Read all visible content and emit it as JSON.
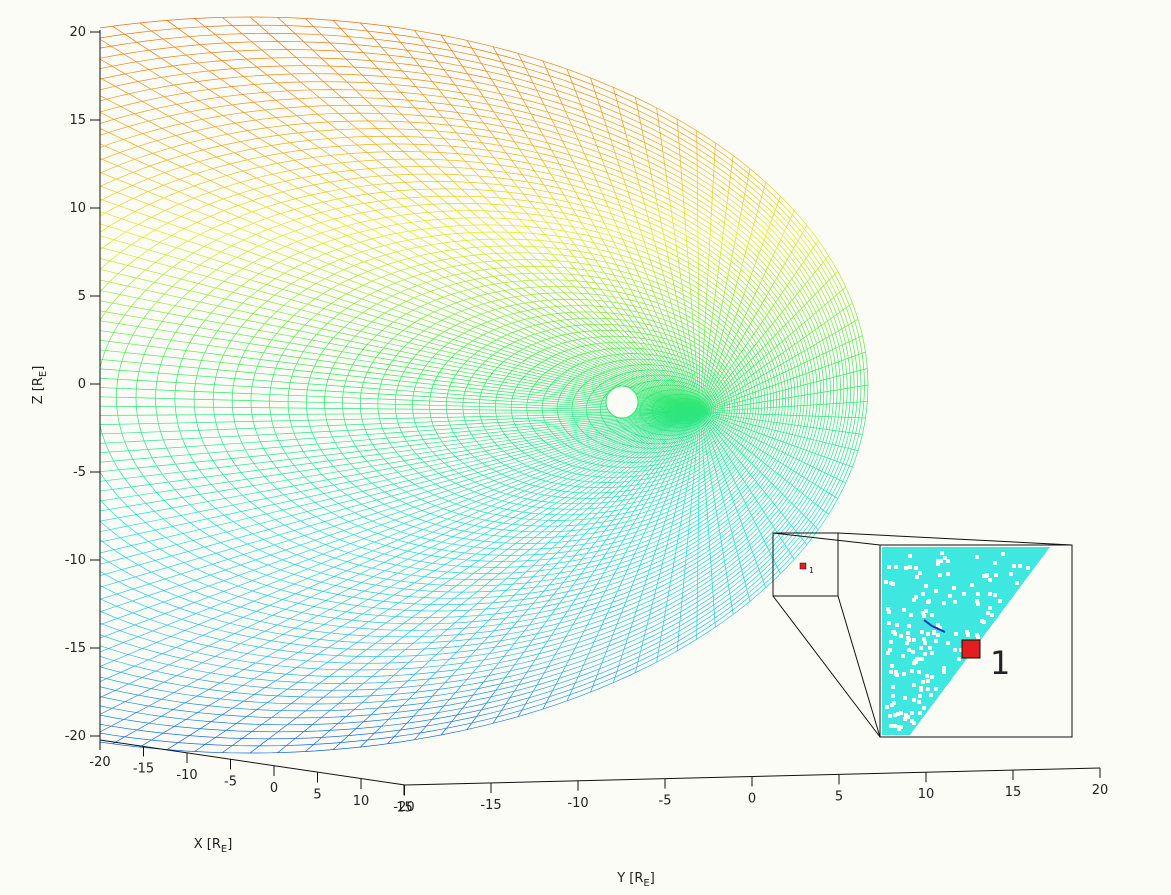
{
  "axes": {
    "z": {
      "ticks": [
        20,
        15,
        10,
        5,
        0,
        -5,
        -10,
        -15,
        -20
      ],
      "label": {
        "main": "Z [R",
        "sub": "E",
        "end": "]"
      }
    },
    "x": {
      "ticks": [
        -20,
        -15,
        -10,
        -5,
        0,
        5,
        10,
        15
      ],
      "label": {
        "main": "X [R",
        "sub": "E",
        "end": "]"
      }
    },
    "y": {
      "ticks": [
        -20,
        -15,
        -10,
        -5,
        0,
        5,
        10,
        15,
        20
      ],
      "label": {
        "main": "Y [R",
        "sub": "E",
        "end": "]"
      }
    }
  },
  "inset": {
    "marker_label": "1"
  }
}
